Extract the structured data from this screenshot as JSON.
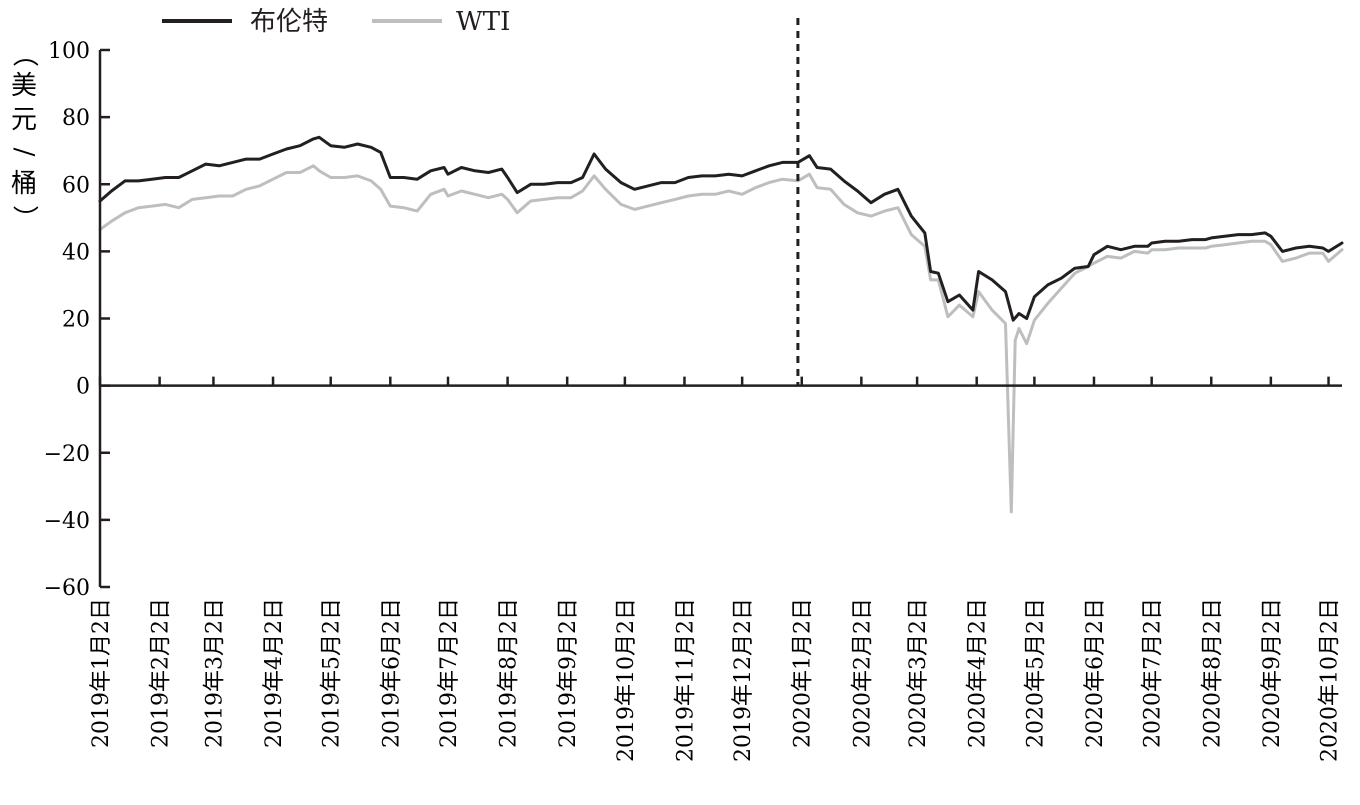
{
  "chart_data": {
    "type": "line",
    "ylabel": "（美元/桶）",
    "ylabel_chars": [
      "（",
      "美",
      "元",
      "/",
      "桶",
      "）"
    ],
    "ylim": [
      -60,
      100
    ],
    "yticks": [
      100,
      80,
      60,
      40,
      20,
      0,
      -20,
      -40,
      -60
    ],
    "ytick_labels": [
      "100",
      "80",
      "60",
      "40",
      "20",
      "0",
      "−20",
      "−40",
      "−60"
    ],
    "xlim": [
      "2019-01-02",
      "2020-10-09"
    ],
    "xticks": [
      "2019-01-02",
      "2019-02-02",
      "2019-03-02",
      "2019-04-02",
      "2019-05-02",
      "2019-06-02",
      "2019-07-02",
      "2019-08-02",
      "2019-09-02",
      "2019-10-02",
      "2019-11-02",
      "2019-12-02",
      "2020-01-02",
      "2020-02-02",
      "2020-03-02",
      "2020-04-02",
      "2020-05-02",
      "2020-06-02",
      "2020-07-02",
      "2020-08-02",
      "2020-09-02",
      "2020-10-02"
    ],
    "xtick_labels": [
      "2019年1月2日",
      "2019年2月2日",
      "2019年3月2日",
      "2019年4月2日",
      "2019年5月2日",
      "2019年6月2日",
      "2019年7月2日",
      "2019年8月2日",
      "2019年9月2日",
      "2019年10月2日",
      "2019年11月2日",
      "2019年12月2日",
      "2020年1月2日",
      "2020年2月2日",
      "2020年3月2日",
      "2020年4月2日",
      "2020年5月2日",
      "2020年6月2日",
      "2020年7月2日",
      "2020年8月2日",
      "2020年9月2日",
      "2020年10月2日"
    ],
    "grid": false,
    "legend_position": "top-left",
    "annotations": [
      {
        "type": "vertical-dashed-line",
        "x": "2019-12-31"
      }
    ],
    "series": [
      {
        "name": "布伦特",
        "color": "#231f20",
        "points": [
          [
            "2019-01-02",
            55
          ],
          [
            "2019-01-08",
            58
          ],
          [
            "2019-01-15",
            61
          ],
          [
            "2019-01-22",
            61
          ],
          [
            "2019-01-29",
            61.5
          ],
          [
            "2019-02-05",
            62
          ],
          [
            "2019-02-12",
            62
          ],
          [
            "2019-02-19",
            64
          ],
          [
            "2019-02-26",
            66
          ],
          [
            "2019-03-05",
            65.5
          ],
          [
            "2019-03-12",
            66.5
          ],
          [
            "2019-03-19",
            67.5
          ],
          [
            "2019-03-26",
            67.5
          ],
          [
            "2019-04-02",
            69
          ],
          [
            "2019-04-09",
            70.5
          ],
          [
            "2019-04-16",
            71.5
          ],
          [
            "2019-04-23",
            73.5
          ],
          [
            "2019-04-26",
            74
          ],
          [
            "2019-05-02",
            71.5
          ],
          [
            "2019-05-09",
            71
          ],
          [
            "2019-05-16",
            72
          ],
          [
            "2019-05-23",
            71
          ],
          [
            "2019-05-28",
            69.5
          ],
          [
            "2019-06-02",
            62
          ],
          [
            "2019-06-09",
            62
          ],
          [
            "2019-06-16",
            61.5
          ],
          [
            "2019-06-23",
            64
          ],
          [
            "2019-06-30",
            65
          ],
          [
            "2019-07-02",
            63
          ],
          [
            "2019-07-09",
            65
          ],
          [
            "2019-07-16",
            64
          ],
          [
            "2019-07-23",
            63.5
          ],
          [
            "2019-07-30",
            64.5
          ],
          [
            "2019-08-02",
            62
          ],
          [
            "2019-08-07",
            57.5
          ],
          [
            "2019-08-14",
            60
          ],
          [
            "2019-08-21",
            60
          ],
          [
            "2019-08-28",
            60.5
          ],
          [
            "2019-09-04",
            60.5
          ],
          [
            "2019-09-10",
            62
          ],
          [
            "2019-09-16",
            69
          ],
          [
            "2019-09-22",
            64.5
          ],
          [
            "2019-09-30",
            60.5
          ],
          [
            "2019-10-07",
            58.5
          ],
          [
            "2019-10-14",
            59.5
          ],
          [
            "2019-10-21",
            60.5
          ],
          [
            "2019-10-28",
            60.5
          ],
          [
            "2019-11-04",
            62
          ],
          [
            "2019-11-11",
            62.5
          ],
          [
            "2019-11-18",
            62.5
          ],
          [
            "2019-11-25",
            63
          ],
          [
            "2019-12-02",
            62.5
          ],
          [
            "2019-12-09",
            64
          ],
          [
            "2019-12-16",
            65.5
          ],
          [
            "2019-12-23",
            66.5
          ],
          [
            "2019-12-31",
            66.5
          ],
          [
            "2020-01-06",
            68.5
          ],
          [
            "2020-01-10",
            65
          ],
          [
            "2020-01-17",
            64.5
          ],
          [
            "2020-01-24",
            61
          ],
          [
            "2020-01-31",
            58
          ],
          [
            "2020-02-07",
            54.5
          ],
          [
            "2020-02-14",
            57
          ],
          [
            "2020-02-21",
            58.5
          ],
          [
            "2020-02-28",
            50.5
          ],
          [
            "2020-03-06",
            45.5
          ],
          [
            "2020-03-09",
            34
          ],
          [
            "2020-03-13",
            33.5
          ],
          [
            "2020-03-18",
            25
          ],
          [
            "2020-03-24",
            27
          ],
          [
            "2020-03-31",
            22.5
          ],
          [
            "2020-04-03",
            34
          ],
          [
            "2020-04-10",
            31.5
          ],
          [
            "2020-04-17",
            28
          ],
          [
            "2020-04-21",
            19.5
          ],
          [
            "2020-04-24",
            21.5
          ],
          [
            "2020-04-28",
            20
          ],
          [
            "2020-05-02",
            26.5
          ],
          [
            "2020-05-09",
            30
          ],
          [
            "2020-05-16",
            32
          ],
          [
            "2020-05-23",
            35
          ],
          [
            "2020-05-30",
            35.5
          ],
          [
            "2020-06-02",
            39
          ],
          [
            "2020-06-09",
            41.5
          ],
          [
            "2020-06-16",
            40.5
          ],
          [
            "2020-06-23",
            41.5
          ],
          [
            "2020-06-30",
            41.5
          ],
          [
            "2020-07-02",
            42.5
          ],
          [
            "2020-07-09",
            43
          ],
          [
            "2020-07-16",
            43
          ],
          [
            "2020-07-23",
            43.5
          ],
          [
            "2020-07-30",
            43.5
          ],
          [
            "2020-08-02",
            44
          ],
          [
            "2020-08-09",
            44.5
          ],
          [
            "2020-08-16",
            45
          ],
          [
            "2020-08-23",
            45
          ],
          [
            "2020-08-30",
            45.5
          ],
          [
            "2020-09-02",
            44.5
          ],
          [
            "2020-09-08",
            40
          ],
          [
            "2020-09-15",
            41
          ],
          [
            "2020-09-22",
            41.5
          ],
          [
            "2020-09-29",
            41
          ],
          [
            "2020-10-02",
            40
          ],
          [
            "2020-10-09",
            42.5
          ]
        ]
      },
      {
        "name": "WTI",
        "color": "#bcbec0",
        "points": [
          [
            "2019-01-02",
            46.5
          ],
          [
            "2019-01-08",
            49
          ],
          [
            "2019-01-15",
            51.5
          ],
          [
            "2019-01-22",
            53
          ],
          [
            "2019-01-29",
            53.5
          ],
          [
            "2019-02-05",
            54
          ],
          [
            "2019-02-12",
            53
          ],
          [
            "2019-02-19",
            55.5
          ],
          [
            "2019-02-26",
            56
          ],
          [
            "2019-03-05",
            56.5
          ],
          [
            "2019-03-12",
            56.5
          ],
          [
            "2019-03-19",
            58.5
          ],
          [
            "2019-03-26",
            59.5
          ],
          [
            "2019-04-02",
            61.5
          ],
          [
            "2019-04-09",
            63.5
          ],
          [
            "2019-04-16",
            63.5
          ],
          [
            "2019-04-23",
            65.5
          ],
          [
            "2019-04-26",
            64
          ],
          [
            "2019-05-02",
            62
          ],
          [
            "2019-05-09",
            62
          ],
          [
            "2019-05-16",
            62.5
          ],
          [
            "2019-05-23",
            61
          ],
          [
            "2019-05-28",
            58.5
          ],
          [
            "2019-06-02",
            53.5
          ],
          [
            "2019-06-09",
            53
          ],
          [
            "2019-06-16",
            52
          ],
          [
            "2019-06-23",
            57
          ],
          [
            "2019-06-30",
            58.5
          ],
          [
            "2019-07-02",
            56.5
          ],
          [
            "2019-07-09",
            58
          ],
          [
            "2019-07-16",
            57
          ],
          [
            "2019-07-23",
            56
          ],
          [
            "2019-07-30",
            57
          ],
          [
            "2019-08-02",
            55.5
          ],
          [
            "2019-08-07",
            51.5
          ],
          [
            "2019-08-14",
            55
          ],
          [
            "2019-08-21",
            55.5
          ],
          [
            "2019-08-28",
            56
          ],
          [
            "2019-09-04",
            56
          ],
          [
            "2019-09-10",
            58
          ],
          [
            "2019-09-16",
            62.5
          ],
          [
            "2019-09-22",
            58.5
          ],
          [
            "2019-09-30",
            54
          ],
          [
            "2019-10-07",
            52.5
          ],
          [
            "2019-10-14",
            53.5
          ],
          [
            "2019-10-21",
            54.5
          ],
          [
            "2019-10-28",
            55.5
          ],
          [
            "2019-11-04",
            56.5
          ],
          [
            "2019-11-11",
            57
          ],
          [
            "2019-11-18",
            57
          ],
          [
            "2019-11-25",
            58
          ],
          [
            "2019-12-02",
            57
          ],
          [
            "2019-12-09",
            59
          ],
          [
            "2019-12-16",
            60.5
          ],
          [
            "2019-12-23",
            61.5
          ],
          [
            "2019-12-31",
            61
          ],
          [
            "2020-01-06",
            63
          ],
          [
            "2020-01-10",
            59
          ],
          [
            "2020-01-17",
            58.5
          ],
          [
            "2020-01-24",
            54
          ],
          [
            "2020-01-31",
            51.5
          ],
          [
            "2020-02-07",
            50.5
          ],
          [
            "2020-02-14",
            52
          ],
          [
            "2020-02-21",
            53
          ],
          [
            "2020-02-28",
            45
          ],
          [
            "2020-03-06",
            41.5
          ],
          [
            "2020-03-09",
            31.5
          ],
          [
            "2020-03-13",
            31.5
          ],
          [
            "2020-03-18",
            20.5
          ],
          [
            "2020-03-24",
            24
          ],
          [
            "2020-03-31",
            20.5
          ],
          [
            "2020-04-03",
            28
          ],
          [
            "2020-04-10",
            22.5
          ],
          [
            "2020-04-17",
            18.5
          ],
          [
            "2020-04-20",
            -37.6
          ],
          [
            "2020-04-22",
            13.5
          ],
          [
            "2020-04-24",
            17
          ],
          [
            "2020-04-28",
            12.5
          ],
          [
            "2020-05-02",
            19.5
          ],
          [
            "2020-05-09",
            24.5
          ],
          [
            "2020-05-16",
            29
          ],
          [
            "2020-05-23",
            33.5
          ],
          [
            "2020-05-30",
            35.5
          ],
          [
            "2020-06-02",
            36.5
          ],
          [
            "2020-06-09",
            38.5
          ],
          [
            "2020-06-16",
            38
          ],
          [
            "2020-06-23",
            40
          ],
          [
            "2020-06-30",
            39.5
          ],
          [
            "2020-07-02",
            40.5
          ],
          [
            "2020-07-09",
            40.5
          ],
          [
            "2020-07-16",
            41
          ],
          [
            "2020-07-23",
            41
          ],
          [
            "2020-07-30",
            41
          ],
          [
            "2020-08-02",
            41.5
          ],
          [
            "2020-08-09",
            42
          ],
          [
            "2020-08-16",
            42.5
          ],
          [
            "2020-08-23",
            43
          ],
          [
            "2020-08-30",
            43
          ],
          [
            "2020-09-02",
            42
          ],
          [
            "2020-09-08",
            37
          ],
          [
            "2020-09-15",
            38
          ],
          [
            "2020-09-22",
            39.5
          ],
          [
            "2020-09-29",
            39.5
          ],
          [
            "2020-10-02",
            37
          ],
          [
            "2020-10-09",
            40.5
          ]
        ]
      }
    ]
  }
}
